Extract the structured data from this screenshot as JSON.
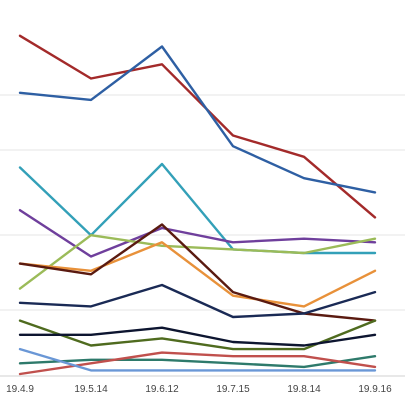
{
  "chart_data": {
    "type": "line",
    "title": "",
    "xlabel": "",
    "ylabel": "",
    "categories": [
      "19.4.9",
      "19.5.14",
      "19.6.12",
      "19.7.15",
      "19.8.14",
      "19.9.16"
    ],
    "ylim": [
      0,
      100
    ],
    "grid": true,
    "legend": "none",
    "series": [
      {
        "color": "#a32a2a",
        "values": [
          95,
          83,
          87,
          67,
          61,
          44
        ]
      },
      {
        "color": "#2e5fa3",
        "values": [
          79,
          77,
          92,
          64,
          55,
          51
        ]
      },
      {
        "color": "#33a0b8",
        "values": [
          58,
          39,
          59,
          35,
          34,
          34
        ]
      },
      {
        "color": "#6f3f9c",
        "values": [
          46,
          33,
          41,
          37,
          38,
          37
        ]
      },
      {
        "color": "#9bbb59",
        "values": [
          24,
          39,
          36,
          35,
          34,
          38
        ]
      },
      {
        "color": "#e8913a",
        "values": [
          31,
          29,
          37,
          22,
          19,
          29
        ]
      },
      {
        "color": "#5a1a10",
        "values": [
          31,
          28,
          42,
          23,
          17,
          15
        ]
      },
      {
        "color": "#1a2a55",
        "values": [
          20,
          19,
          25,
          16,
          17,
          23
        ]
      },
      {
        "color": "#4f6b1f",
        "values": [
          15,
          8,
          10,
          7,
          7,
          15
        ]
      },
      {
        "color": "#0d1530",
        "values": [
          11,
          11,
          13,
          9,
          8,
          11
        ]
      },
      {
        "color": "#2e7a6b",
        "values": [
          3,
          4,
          4,
          3,
          2,
          5
        ]
      },
      {
        "color": "#c0504d",
        "values": [
          0,
          3,
          6,
          5,
          5,
          2
        ]
      },
      {
        "color": "#6a97d6",
        "values": [
          7,
          1,
          1,
          1,
          1,
          1
        ]
      }
    ]
  }
}
